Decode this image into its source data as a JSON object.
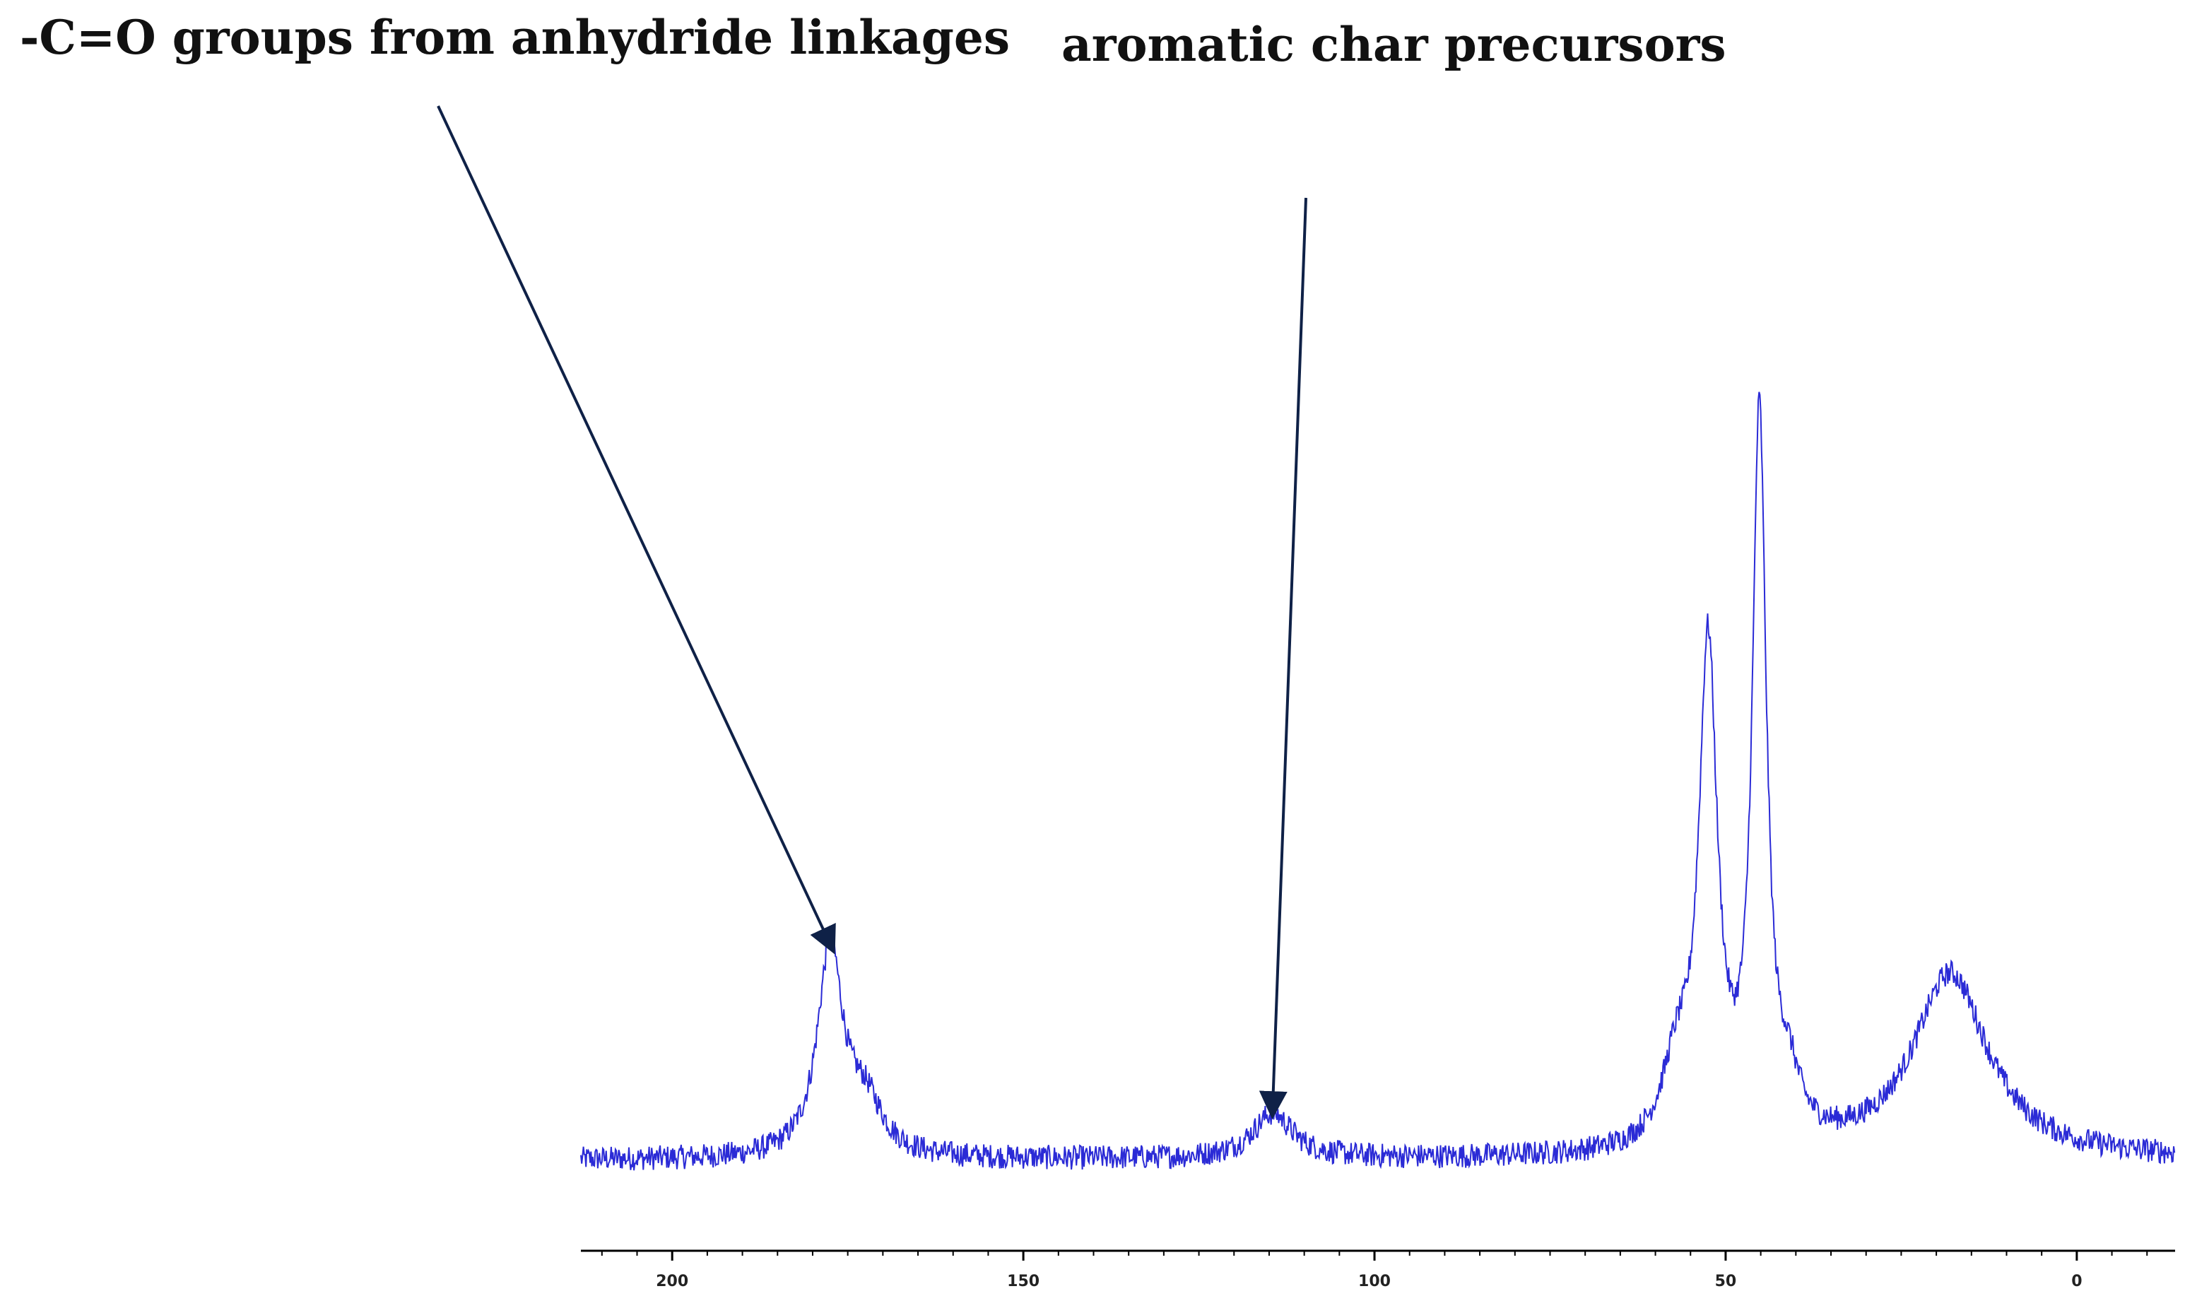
{
  "chart_data": {
    "type": "line",
    "title": "",
    "xlabel": "",
    "ylabel": "",
    "x_reversed": true,
    "xlim": [
      213,
      -14
    ],
    "ylim": [
      0,
      1
    ],
    "y_axis_visible": false,
    "grid": false,
    "legend": "none",
    "x_ticks": [
      200,
      150,
      100,
      50,
      0
    ],
    "x_tick_labels": [
      "200",
      "150",
      "100",
      "50",
      "0"
    ],
    "series": [
      {
        "color": "#2b2bd6",
        "baseline": 0.05,
        "noise": 0.015,
        "peaks": [
          {
            "center": 177.5,
            "height": 0.255,
            "width": 2.2
          },
          {
            "center": 172.5,
            "height": 0.06,
            "width": 3.0
          },
          {
            "center": 114.5,
            "height": 0.055,
            "width": 3.5
          },
          {
            "center": 52.5,
            "height": 0.6,
            "width": 1.6
          },
          {
            "center": 45.2,
            "height": 0.875,
            "width": 1.2
          },
          {
            "center": 57.0,
            "height": 0.09,
            "width": 2.5
          },
          {
            "center": 41.0,
            "height": 0.06,
            "width": 2.0
          },
          {
            "center": 18.0,
            "height": 0.225,
            "width": 6.5
          }
        ]
      }
    ],
    "annotations": [
      {
        "text": "-C=O groups from anhydride linkages",
        "x": 177.5,
        "y": 0.305
      },
      {
        "text": "aromatic char precursors",
        "x": 114.5,
        "y": 0.105
      }
    ],
    "arrow_color": "#0f2147"
  }
}
